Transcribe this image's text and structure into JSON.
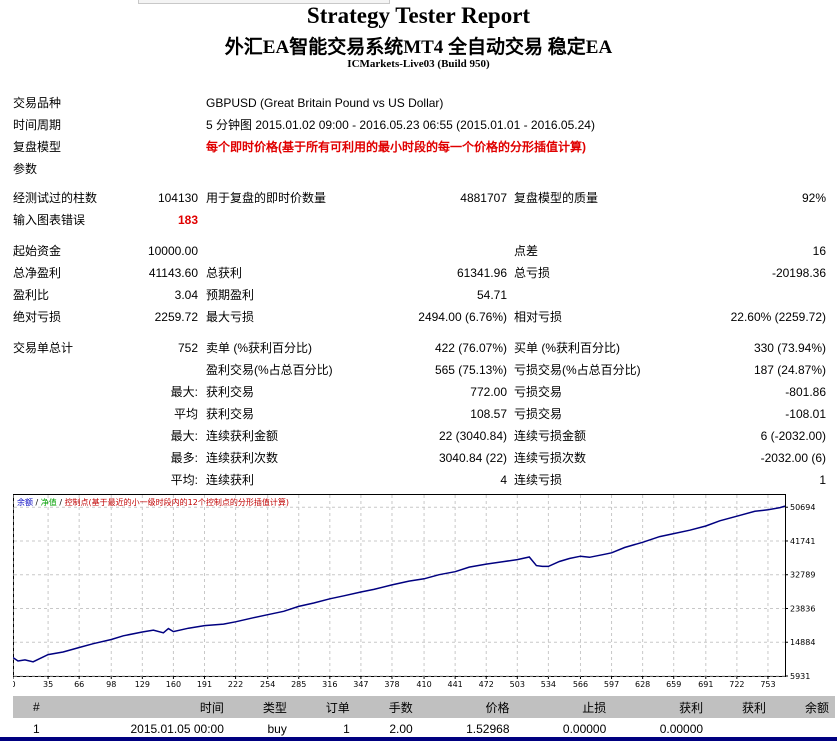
{
  "header": {
    "title": "Strategy Tester Report",
    "subtitle": "外汇EA智能交易系统MT4 全自动交易 稳定EA",
    "server": "ICMarkets-Live03 (Build 950)"
  },
  "info": {
    "symbol_label": "交易品种",
    "symbol_value": "GBPUSD (Great Britain Pound vs US Dollar)",
    "period_label": "时间周期",
    "period_value": "5 分钟图 2015.01.02 09:00 - 2016.05.23 06:55 (2015.01.01 - 2016.05.24)",
    "model_label": "复盘模型",
    "model_value": "每个即时价格(基于所有可利用的最小时段的每一个价格的分形插值计算)",
    "params_label": "参数"
  },
  "stats": {
    "bars_label": "经测试过的柱数",
    "bars_value": "104130",
    "ticks_label": "用于复盘的即时价数量",
    "ticks_value": "4881707",
    "quality_label": "复盘模型的质量",
    "quality_value": "92%",
    "errors_label": "输入图表错误",
    "errors_value": "183",
    "deposit_label": "起始资金",
    "deposit_value": "10000.00",
    "spread_label": "点差",
    "spread_value": "16",
    "net_label": "总净盈利",
    "net_value": "41143.60",
    "gross_profit_label": "总获利",
    "gross_profit_value": "61341.96",
    "gross_loss_label": "总亏损",
    "gross_loss_value": "-20198.36",
    "pf_label": "盈利比",
    "pf_value": "3.04",
    "expected_label": "预期盈利",
    "expected_value": "54.71",
    "abs_dd_label": "绝对亏损",
    "abs_dd_value": "2259.72",
    "max_dd_label": "最大亏损",
    "max_dd_value": "2494.00 (6.76%)",
    "rel_dd_label": "相对亏损",
    "rel_dd_value": "22.60% (2259.72)",
    "total_trades_label": "交易单总计",
    "total_trades_value": "752",
    "short_label": "卖单 (%获利百分比)",
    "short_value": "422 (76.07%)",
    "long_label": "买单 (%获利百分比)",
    "long_value": "330 (73.94%)",
    "profit_trades_label": "盈利交易(%占总百分比)",
    "profit_trades_value": "565 (75.13%)",
    "loss_trades_label": "亏损交易(%占总百分比)",
    "loss_trades_value": "187 (24.87%)",
    "largest_label": "最大:",
    "largest_profit_label": "获利交易",
    "largest_profit_value": "772.00",
    "largest_loss_label": "亏损交易",
    "largest_loss_value": "-801.86",
    "average_label": "平均",
    "average_profit_label": "获利交易",
    "average_profit_value": "108.57",
    "average_loss_label": "亏损交易",
    "average_loss_value": "-108.01",
    "max_cons_label": "最大:",
    "max_cons_wins_amt_label": "连续获利金额",
    "max_cons_wins_amt_value": "22 (3040.84)",
    "max_cons_losses_amt_label": "连续亏损金额",
    "max_cons_losses_amt_value": "6 (-2032.00)",
    "most_label": "最多:",
    "most_cons_profit_label": "连续获利次数",
    "most_cons_profit_value": "3040.84 (22)",
    "most_cons_loss_label": "连续亏损次数",
    "most_cons_loss_value": "-2032.00 (6)",
    "avg_cons_label": "平均:",
    "avg_cons_wins_label": "连续获利",
    "avg_cons_wins_value": "4",
    "avg_cons_losses_label": "连续亏损",
    "avg_cons_losses_value": "1"
  },
  "chart_data": {
    "type": "line",
    "legend": [
      "余额",
      "净值",
      "控制点(基于最近的小一级时段内的12个控制点的分形插值计算)"
    ],
    "legend_colors": [
      "#0000c0",
      "#00a000",
      "#c00000"
    ],
    "x_ticks": [
      0,
      35,
      66,
      98,
      129,
      160,
      191,
      222,
      254,
      285,
      316,
      347,
      378,
      410,
      441,
      472,
      503,
      534,
      566,
      597,
      628,
      659,
      691,
      722,
      753
    ],
    "y_ticks": [
      5931,
      14884,
      23836,
      32789,
      41741,
      50694
    ],
    "xlim": [
      0,
      770
    ],
    "ylim": [
      5931,
      54200
    ],
    "series": [
      {
        "name": "余额",
        "color": "#000080",
        "x": [
          0,
          5,
          12,
          20,
          35,
          50,
          66,
          80,
          98,
          110,
          129,
          140,
          150,
          155,
          160,
          175,
          191,
          210,
          222,
          240,
          254,
          270,
          285,
          300,
          316,
          330,
          347,
          360,
          378,
          395,
          410,
          425,
          441,
          455,
          472,
          490,
          503,
          515,
          522,
          528,
          534,
          545,
          555,
          566,
          575,
          590,
          597,
          610,
          628,
          645,
          659,
          675,
          691,
          705,
          722,
          740,
          753,
          765,
          770
        ],
        "y": [
          10800,
          9900,
          10200,
          9700,
          11600,
          12300,
          13500,
          14500,
          15600,
          16600,
          17600,
          18100,
          17400,
          18500,
          17700,
          18600,
          19300,
          19700,
          20300,
          21400,
          22200,
          23100,
          24400,
          25300,
          26400,
          27200,
          28200,
          28900,
          30100,
          31100,
          31700,
          32800,
          33600,
          34800,
          35600,
          36300,
          36800,
          37500,
          35200,
          35000,
          35000,
          36300,
          37100,
          37700,
          37400,
          38200,
          38600,
          40000,
          41400,
          42900,
          43700,
          44600,
          45700,
          47100,
          48300,
          49600,
          50000,
          50600,
          51000
        ]
      }
    ]
  },
  "trades": {
    "headers": [
      "#",
      "时间",
      "类型",
      "订单",
      "手数",
      "价格",
      "止损",
      "获利",
      "获利",
      "余额"
    ],
    "rows": [
      [
        "1",
        "2015.01.05 00:00",
        "buy",
        "1",
        "2.00",
        "1.52968",
        "0.00000",
        "0.00000",
        "",
        ""
      ]
    ]
  }
}
